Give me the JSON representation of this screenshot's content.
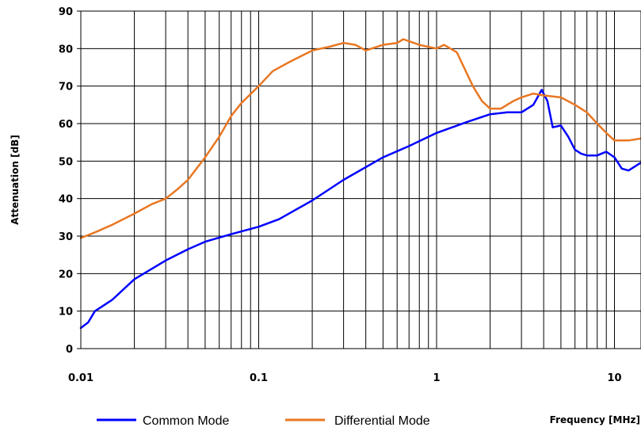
{
  "chart_data": {
    "type": "line",
    "xscale": "log",
    "xlim": [
      0.01,
      14
    ],
    "ylim": [
      0,
      90
    ],
    "grid": true,
    "legend_position": "bottom",
    "xlabel": "Frequency [MHz]",
    "ylabel": "Attenuation [dB]",
    "x_ticks": [
      0.01,
      0.1,
      1,
      10
    ],
    "x_tick_labels": [
      "0.01",
      "0.1",
      "1",
      "10"
    ],
    "y_ticks": [
      0,
      10,
      20,
      30,
      40,
      50,
      60,
      70,
      80,
      90
    ],
    "y_tick_labels": [
      "0",
      "10",
      "20",
      "30",
      "40",
      "50",
      "60",
      "70",
      "80",
      "90"
    ],
    "series": [
      {
        "name": "Common Mode",
        "color": "#0000ff",
        "x": [
          0.01,
          0.011,
          0.012,
          0.015,
          0.02,
          0.03,
          0.04,
          0.05,
          0.07,
          0.1,
          0.13,
          0.2,
          0.3,
          0.5,
          0.7,
          1.0,
          1.5,
          2.0,
          2.5,
          3.0,
          3.5,
          3.9,
          4.2,
          4.5,
          5.0,
          5.5,
          6.0,
          6.5,
          7.0,
          8.0,
          9.0,
          10.0,
          11.0,
          12.0,
          14.0
        ],
        "y": [
          5.5,
          7,
          10,
          13,
          18.5,
          23.5,
          26.5,
          28.5,
          30.5,
          32.5,
          34.5,
          39.5,
          45,
          51,
          54,
          57.5,
          60.5,
          62.5,
          63,
          63,
          65,
          69,
          66,
          59,
          59.5,
          56.5,
          53,
          52,
          51.5,
          51.5,
          52.5,
          51,
          48,
          47.5,
          49.5
        ]
      },
      {
        "name": "Differential Mode",
        "color": "#e87722",
        "x": [
          0.01,
          0.012,
          0.015,
          0.02,
          0.025,
          0.03,
          0.035,
          0.04,
          0.05,
          0.06,
          0.07,
          0.08,
          0.1,
          0.12,
          0.15,
          0.2,
          0.25,
          0.3,
          0.35,
          0.4,
          0.5,
          0.6,
          0.65,
          0.8,
          1.0,
          1.1,
          1.3,
          1.6,
          1.8,
          2.0,
          2.3,
          2.7,
          3.0,
          3.5,
          4.0,
          5.0,
          6.0,
          7.0,
          8.0,
          9.0,
          10.0,
          12.0,
          14.0
        ],
        "y": [
          29.5,
          31,
          33,
          36,
          38.5,
          40,
          42.5,
          45,
          51,
          56.5,
          62,
          65.5,
          70,
          74,
          76.5,
          79.5,
          80.5,
          81.5,
          81,
          79.5,
          81,
          81.5,
          82.5,
          81,
          80,
          81,
          79,
          70,
          66,
          64,
          64,
          66,
          67,
          68,
          67.5,
          67,
          65,
          63,
          60,
          57.5,
          55.5,
          55.5,
          56
        ]
      }
    ]
  }
}
